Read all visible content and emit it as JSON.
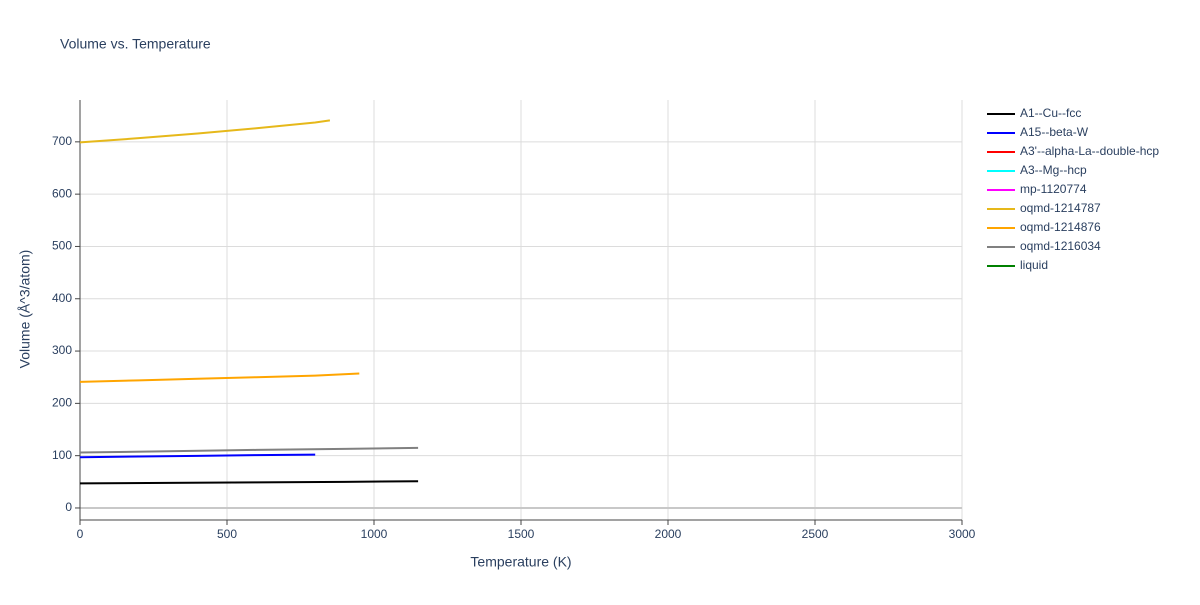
{
  "chart_data": {
    "type": "line",
    "title": "Volume vs. Temperature",
    "x_label": "Temperature (K)",
    "y_label": "Volume (Å^3/atom)",
    "xlim": [
      0,
      3000
    ],
    "xticks": [
      0,
      500,
      1000,
      1500,
      2000,
      2500,
      3000
    ],
    "ylim": [
      -23,
      780
    ],
    "yticks": [
      0,
      100,
      200,
      300,
      400,
      500,
      600,
      700
    ],
    "grid": true,
    "legend": "right",
    "series": [
      {
        "name": "A1--Cu--fcc",
        "color": "#000000",
        "x": [
          0,
          300,
          600,
          900,
          1150
        ],
        "values": [
          47,
          48,
          49,
          50,
          51
        ]
      },
      {
        "name": "A15--beta-W",
        "color": "#0000ff",
        "x": [
          0,
          200,
          400,
          600,
          800
        ],
        "values": [
          97,
          98.5,
          99.5,
          101,
          102
        ]
      },
      {
        "name": "A3'--alpha-La--double-hcp",
        "color": "#ff0000",
        "x": [],
        "values": []
      },
      {
        "name": "A3--Mg--hcp",
        "color": "#00ffff",
        "x": [],
        "values": []
      },
      {
        "name": "mp-1120774",
        "color": "#ff00ff",
        "x": [],
        "values": []
      },
      {
        "name": "oqmd-1214787",
        "color": "#e6b81a",
        "x": [
          0,
          200,
          400,
          600,
          800,
          850
        ],
        "values": [
          699,
          707,
          716,
          726,
          737,
          741
        ]
      },
      {
        "name": "oqmd-1214876",
        "color": "#ffa500",
        "x": [
          0,
          200,
          400,
          600,
          800,
          950
        ],
        "values": [
          241,
          244,
          247,
          250,
          253,
          257
        ]
      },
      {
        "name": "oqmd-1216034",
        "color": "#808080",
        "x": [
          0,
          300,
          600,
          900,
          1150
        ],
        "values": [
          106,
          108.5,
          111,
          113,
          115
        ]
      },
      {
        "name": "liquid",
        "color": "#008000",
        "x": [],
        "values": []
      }
    ]
  }
}
